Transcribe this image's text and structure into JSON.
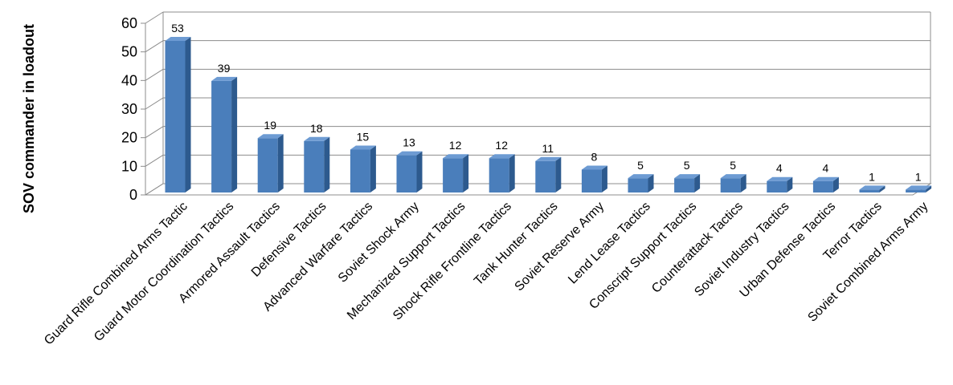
{
  "chart_data": {
    "type": "bar",
    "title": "",
    "xlabel": "",
    "ylabel": "SOV commander in loadout",
    "ylim": [
      0,
      60
    ],
    "yticks": [
      0,
      10,
      20,
      30,
      40,
      50,
      60
    ],
    "grid": true,
    "categories": [
      "Guard Rifle Combined Arms Tactic",
      "Guard Motor Coordination Tactics",
      "Armored Assault Tactics",
      "Defensive Tactics",
      "Advanced Warfare Tactics",
      "Soviet Shock Army",
      "Mechanized Support Tactics",
      "Shock Rifle Frontline Tactics",
      "Tank Hunter Tactics",
      "Soviet Reserve Army",
      "Lend Lease Tactics",
      "Conscript Support Tactics",
      "Counterattack Tactics",
      "Soviet Industry Tactics",
      "Urban Defense Tactics",
      "Terror Tactics",
      "Soviet Combined Arms Army"
    ],
    "values": [
      53,
      39,
      19,
      18,
      15,
      13,
      12,
      12,
      11,
      8,
      5,
      5,
      5,
      4,
      4,
      1,
      1
    ],
    "colors": {
      "bar_front": "#4a7ebb",
      "bar_side": "#2d5a8e",
      "bar_top": "#6d9bd3",
      "grid": "#8c8c8c"
    }
  }
}
